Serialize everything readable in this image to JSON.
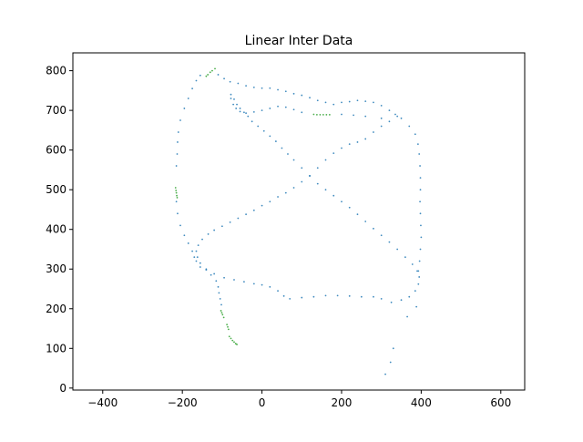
{
  "chart_data": {
    "type": "scatter",
    "title": "Linear Inter Data",
    "xlabel": "",
    "ylabel": "",
    "xlim": [
      -475,
      660
    ],
    "ylim": [
      -5,
      845
    ],
    "xticks": [
      -400,
      -200,
      0,
      200,
      400,
      600
    ],
    "xtick_labels": [
      "−400",
      "−200",
      "0",
      "200",
      "400",
      "600"
    ],
    "yticks": [
      0,
      100,
      200,
      300,
      400,
      500,
      600,
      700,
      800
    ],
    "ytick_labels": [
      "0",
      "100",
      "200",
      "300",
      "400",
      "500",
      "600",
      "700",
      "800"
    ],
    "grid": false,
    "series": [
      {
        "color": "#1f77b4",
        "points": [
          [
            310,
            35
          ],
          [
            323,
            65
          ],
          [
            330,
            100
          ],
          [
            365,
            180
          ],
          [
            388,
            205
          ],
          [
            -78,
            740
          ],
          [
            -70,
            728
          ],
          [
            -63,
            715
          ],
          [
            -55,
            705
          ],
          [
            -45,
            695
          ],
          [
            -35,
            685
          ],
          [
            -25,
            672
          ],
          [
            -10,
            660
          ],
          [
            5,
            648
          ],
          [
            20,
            635
          ],
          [
            35,
            622
          ],
          [
            50,
            605
          ],
          [
            65,
            590
          ],
          [
            80,
            575
          ],
          [
            100,
            555
          ],
          [
            120,
            535
          ],
          [
            140,
            515
          ],
          [
            160,
            500
          ],
          [
            180,
            485
          ],
          [
            200,
            470
          ],
          [
            220,
            455
          ],
          [
            240,
            438
          ],
          [
            260,
            420
          ],
          [
            280,
            402
          ],
          [
            300,
            385
          ],
          [
            320,
            368
          ],
          [
            340,
            350
          ],
          [
            360,
            330
          ],
          [
            378,
            312
          ],
          [
            390,
            295
          ],
          [
            395,
            280
          ],
          [
            393,
            262
          ],
          [
            385,
            245
          ],
          [
            370,
            230
          ],
          [
            350,
            222
          ],
          [
            325,
            216
          ],
          [
            300,
            225
          ],
          [
            280,
            230
          ],
          [
            250,
            230
          ],
          [
            220,
            232
          ],
          [
            190,
            233
          ],
          [
            160,
            233
          ],
          [
            130,
            230
          ],
          [
            100,
            228
          ],
          [
            70,
            225
          ],
          [
            55,
            232
          ],
          [
            40,
            245
          ],
          [
            20,
            255
          ],
          [
            0,
            260
          ],
          [
            -20,
            263
          ],
          [
            -45,
            268
          ],
          [
            -70,
            273
          ],
          [
            -95,
            278
          ],
          [
            -120,
            288
          ],
          [
            -140,
            300
          ],
          [
            -155,
            315
          ],
          [
            -162,
            330
          ],
          [
            -165,
            345
          ],
          [
            -160,
            360
          ],
          [
            -150,
            375
          ],
          [
            -135,
            388
          ],
          [
            -120,
            398
          ],
          [
            -100,
            408
          ],
          [
            -80,
            418
          ],
          [
            -60,
            428
          ],
          [
            -40,
            438
          ],
          [
            -20,
            448
          ],
          [
            0,
            460
          ],
          [
            20,
            470
          ],
          [
            40,
            482
          ],
          [
            60,
            492
          ],
          [
            80,
            505
          ],
          [
            100,
            520
          ],
          [
            120,
            535
          ],
          [
            140,
            555
          ],
          [
            160,
            575
          ],
          [
            180,
            592
          ],
          [
            200,
            605
          ],
          [
            220,
            615
          ],
          [
            240,
            620
          ],
          [
            260,
            628
          ],
          [
            280,
            645
          ],
          [
            300,
            660
          ],
          [
            320,
            672
          ],
          [
            340,
            685
          ],
          [
            -215,
            560
          ],
          [
            -213,
            590
          ],
          [
            -212,
            620
          ],
          [
            -210,
            645
          ],
          [
            -205,
            675
          ],
          [
            -195,
            705
          ],
          [
            -185,
            730
          ],
          [
            -175,
            755
          ],
          [
            -165,
            775
          ],
          [
            -155,
            788
          ],
          [
            -110,
            790
          ],
          [
            -95,
            780
          ],
          [
            -80,
            772
          ],
          [
            -60,
            768
          ],
          [
            -40,
            762
          ],
          [
            -20,
            758
          ],
          [
            0,
            756
          ],
          [
            20,
            756
          ],
          [
            40,
            752
          ],
          [
            60,
            748
          ],
          [
            80,
            742
          ],
          [
            100,
            738
          ],
          [
            120,
            732
          ],
          [
            140,
            725
          ],
          [
            160,
            720
          ],
          [
            180,
            715
          ],
          [
            200,
            720
          ],
          [
            220,
            722
          ],
          [
            240,
            725
          ],
          [
            260,
            723
          ],
          [
            280,
            720
          ],
          [
            300,
            712
          ],
          [
            320,
            700
          ],
          [
            335,
            690
          ],
          [
            350,
            680
          ],
          [
            370,
            660
          ],
          [
            385,
            640
          ],
          [
            392,
            615
          ],
          [
            395,
            590
          ],
          [
            397,
            560
          ],
          [
            398,
            530
          ],
          [
            398,
            500
          ],
          [
            397,
            470
          ],
          [
            398,
            440
          ],
          [
            399,
            410
          ],
          [
            400,
            380
          ],
          [
            398,
            350
          ],
          [
            396,
            320
          ],
          [
            393,
            295
          ],
          [
            -215,
            470
          ],
          [
            -212,
            440
          ],
          [
            -205,
            410
          ],
          [
            -195,
            385
          ],
          [
            -185,
            365
          ],
          [
            -175,
            345
          ],
          [
            -170,
            330
          ],
          [
            -165,
            320
          ],
          [
            -155,
            305
          ],
          [
            -140,
            298
          ],
          [
            -128,
            285
          ],
          [
            -115,
            270
          ],
          [
            -110,
            255
          ],
          [
            -108,
            240
          ],
          [
            -105,
            225
          ],
          [
            -102,
            210
          ],
          [
            -78,
            730
          ],
          [
            -72,
            715
          ],
          [
            -65,
            705
          ],
          [
            -55,
            697
          ],
          [
            -40,
            693
          ],
          [
            -20,
            696
          ],
          [
            0,
            700
          ],
          [
            20,
            705
          ],
          [
            40,
            710
          ],
          [
            60,
            708
          ],
          [
            80,
            702
          ],
          [
            100,
            695
          ],
          [
            200,
            690
          ],
          [
            230,
            688
          ],
          [
            260,
            685
          ],
          [
            300,
            680
          ]
        ]
      },
      {
        "color": "#2ca02c",
        "points": [
          [
            -118,
            805
          ],
          [
            -125,
            800
          ],
          [
            -130,
            796
          ],
          [
            -136,
            790
          ],
          [
            -140,
            786
          ],
          [
            -217,
            505
          ],
          [
            -216,
            498
          ],
          [
            -215,
            492
          ],
          [
            -214,
            485
          ],
          [
            -213,
            480
          ],
          [
            -103,
            195
          ],
          [
            -101,
            190
          ],
          [
            -99,
            185
          ],
          [
            -96,
            178
          ],
          [
            -88,
            160
          ],
          [
            -86,
            154
          ],
          [
            -84,
            148
          ],
          [
            -82,
            130
          ],
          [
            -78,
            125
          ],
          [
            -74,
            120
          ],
          [
            -70,
            116
          ],
          [
            -66,
            112
          ],
          [
            -63,
            110
          ],
          [
            130,
            690
          ],
          [
            138,
            689
          ],
          [
            146,
            689
          ],
          [
            154,
            689
          ],
          [
            162,
            689
          ],
          [
            170,
            689
          ]
        ]
      }
    ]
  }
}
